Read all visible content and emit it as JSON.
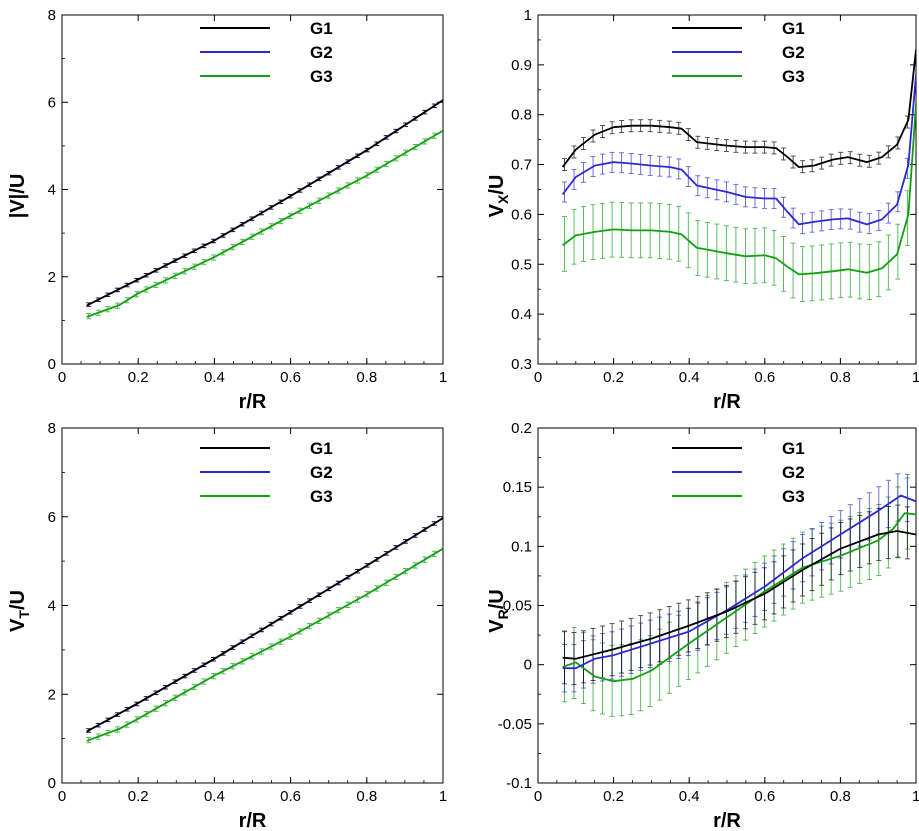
{
  "chart_data": [
    {
      "type": "line",
      "ylabel": "|V|/U",
      "xlabel": "r/R",
      "xlim": [
        0,
        1
      ],
      "ylim": [
        0,
        8
      ],
      "xticks": [
        "0",
        "0.2",
        "0.4",
        "0.6",
        "0.8",
        "1"
      ],
      "xtick_values": [
        0,
        0.2,
        0.4,
        0.6,
        0.8,
        1
      ],
      "yticks": [
        "0",
        "2",
        "4",
        "6",
        "8"
      ],
      "ytick_values": [
        0,
        2,
        4,
        6,
        8
      ],
      "legend": [
        "G1",
        "G2",
        "G3"
      ],
      "series": [
        {
          "name": "G1",
          "color": "#000000",
          "x": [
            0.065,
            0.2,
            0.4,
            0.6,
            0.8,
            1.0
          ],
          "y": [
            1.34,
            1.94,
            2.83,
            3.85,
            4.9,
            6.05
          ]
        },
        {
          "name": "G2",
          "color": "#2a2ad0",
          "x": [
            0.065,
            0.2,
            0.4,
            0.6,
            0.8,
            1.0
          ],
          "y": [
            1.34,
            1.94,
            2.83,
            3.85,
            4.9,
            6.05
          ]
        },
        {
          "name": "G3",
          "color": "#10a010",
          "x": [
            0.065,
            0.15,
            0.2,
            0.4,
            0.6,
            0.8,
            1.0
          ],
          "y": [
            1.08,
            1.35,
            1.62,
            2.45,
            3.4,
            4.32,
            5.35
          ]
        }
      ]
    },
    {
      "type": "line",
      "ylabel": "V_X/U",
      "xlabel": "r/R",
      "xlim": [
        0,
        1
      ],
      "ylim": [
        0.3,
        1
      ],
      "xticks": [
        "0",
        "0.2",
        "0.4",
        "0.6",
        "0.8",
        "1"
      ],
      "xtick_values": [
        0,
        0.2,
        0.4,
        0.6,
        0.8,
        1
      ],
      "yticks": [
        "0.3",
        "0.4",
        "0.5",
        "0.6",
        "0.7",
        "0.8",
        "0.9",
        "1"
      ],
      "ytick_values": [
        0.3,
        0.4,
        0.5,
        0.6,
        0.7,
        0.8,
        0.9,
        1
      ],
      "legend": [
        "G1",
        "G2",
        "G3"
      ],
      "series": [
        {
          "name": "G1",
          "color": "#000000",
          "x": [
            0.065,
            0.1,
            0.15,
            0.2,
            0.25,
            0.3,
            0.35,
            0.38,
            0.42,
            0.5,
            0.55,
            0.6,
            0.63,
            0.66,
            0.69,
            0.73,
            0.78,
            0.82,
            0.87,
            0.91,
            0.95,
            0.98,
            1.0
          ],
          "y": [
            0.695,
            0.73,
            0.76,
            0.775,
            0.778,
            0.778,
            0.775,
            0.772,
            0.745,
            0.738,
            0.735,
            0.735,
            0.733,
            0.715,
            0.695,
            0.698,
            0.71,
            0.715,
            0.705,
            0.715,
            0.74,
            0.79,
            0.93
          ]
        },
        {
          "name": "G2",
          "color": "#2a2ad0",
          "x": [
            0.065,
            0.1,
            0.15,
            0.2,
            0.25,
            0.3,
            0.35,
            0.38,
            0.42,
            0.5,
            0.55,
            0.6,
            0.63,
            0.66,
            0.69,
            0.73,
            0.78,
            0.82,
            0.87,
            0.91,
            0.95,
            0.98,
            1.0
          ],
          "y": [
            0.64,
            0.675,
            0.698,
            0.705,
            0.702,
            0.698,
            0.695,
            0.69,
            0.658,
            0.645,
            0.635,
            0.632,
            0.632,
            0.605,
            0.58,
            0.585,
            0.59,
            0.592,
            0.58,
            0.59,
            0.62,
            0.7,
            0.88
          ]
        },
        {
          "name": "G3",
          "color": "#10a010",
          "x": [
            0.065,
            0.1,
            0.15,
            0.2,
            0.25,
            0.3,
            0.35,
            0.38,
            0.42,
            0.5,
            0.55,
            0.6,
            0.63,
            0.66,
            0.69,
            0.73,
            0.78,
            0.82,
            0.87,
            0.91,
            0.95,
            0.98,
            1.0
          ],
          "y": [
            0.538,
            0.558,
            0.565,
            0.57,
            0.568,
            0.568,
            0.565,
            0.56,
            0.533,
            0.522,
            0.516,
            0.518,
            0.512,
            0.495,
            0.48,
            0.482,
            0.486,
            0.49,
            0.483,
            0.492,
            0.52,
            0.6,
            0.82
          ]
        }
      ]
    },
    {
      "type": "line",
      "ylabel": "V_T/U",
      "xlabel": "r/R",
      "xlim": [
        0,
        1
      ],
      "ylim": [
        0,
        8
      ],
      "xticks": [
        "0",
        "0.2",
        "0.4",
        "0.6",
        "0.8",
        "1"
      ],
      "xtick_values": [
        0,
        0.2,
        0.4,
        0.6,
        0.8,
        1
      ],
      "yticks": [
        "0",
        "2",
        "4",
        "6",
        "8"
      ],
      "ytick_values": [
        0,
        2,
        4,
        6,
        8
      ],
      "legend": [
        "G1",
        "G2",
        "G3"
      ],
      "series": [
        {
          "name": "G1",
          "color": "#000000",
          "x": [
            0.065,
            0.2,
            0.4,
            0.6,
            0.8,
            1.0
          ],
          "y": [
            1.16,
            1.8,
            2.8,
            3.85,
            4.9,
            5.97
          ]
        },
        {
          "name": "G2",
          "color": "#2a2ad0",
          "x": [
            0.065,
            0.2,
            0.4,
            0.6,
            0.8,
            1.0
          ],
          "y": [
            1.16,
            1.8,
            2.8,
            3.85,
            4.9,
            5.97
          ]
        },
        {
          "name": "G3",
          "color": "#10a010",
          "x": [
            0.065,
            0.15,
            0.2,
            0.4,
            0.6,
            0.8,
            1.0
          ],
          "y": [
            0.95,
            1.22,
            1.45,
            2.42,
            3.3,
            4.25,
            5.28
          ]
        }
      ]
    },
    {
      "type": "line",
      "ylabel": "V_R/U",
      "xlabel": "r/R",
      "xlim": [
        0,
        1
      ],
      "ylim": [
        -0.1,
        0.2
      ],
      "xticks": [
        "0",
        "0.2",
        "0.4",
        "0.6",
        "0.8",
        "1"
      ],
      "xtick_values": [
        0,
        0.2,
        0.4,
        0.6,
        0.8,
        1
      ],
      "yticks": [
        "-0.1",
        "-0.05",
        "0",
        "0.05",
        "0.1",
        "0.15",
        "0.2"
      ],
      "ytick_values": [
        -0.1,
        -0.05,
        0,
        0.05,
        0.1,
        0.15,
        0.2
      ],
      "legend": [
        "G1",
        "G2",
        "G3"
      ],
      "series": [
        {
          "name": "G1",
          "color": "#000000",
          "x": [
            0.065,
            0.1,
            0.2,
            0.3,
            0.4,
            0.5,
            0.6,
            0.7,
            0.8,
            0.9,
            0.95,
            1.0
          ],
          "y": [
            0.006,
            0.005,
            0.013,
            0.022,
            0.033,
            0.045,
            0.06,
            0.08,
            0.098,
            0.11,
            0.113,
            0.11
          ]
        },
        {
          "name": "G2",
          "color": "#2a2ad0",
          "x": [
            0.065,
            0.1,
            0.15,
            0.2,
            0.3,
            0.4,
            0.5,
            0.6,
            0.7,
            0.8,
            0.9,
            0.96,
            1.0
          ],
          "y": [
            -0.003,
            -0.003,
            0.005,
            0.008,
            0.018,
            0.028,
            0.046,
            0.066,
            0.09,
            0.11,
            0.13,
            0.143,
            0.138
          ]
        },
        {
          "name": "G3",
          "color": "#10a010",
          "x": [
            0.065,
            0.1,
            0.15,
            0.2,
            0.25,
            0.3,
            0.4,
            0.5,
            0.6,
            0.7,
            0.8,
            0.9,
            0.94,
            0.97,
            1.0
          ],
          "y": [
            -0.002,
            0.002,
            -0.01,
            -0.014,
            -0.012,
            -0.005,
            0.018,
            0.04,
            0.062,
            0.082,
            0.092,
            0.105,
            0.115,
            0.128,
            0.127
          ]
        }
      ]
    }
  ]
}
